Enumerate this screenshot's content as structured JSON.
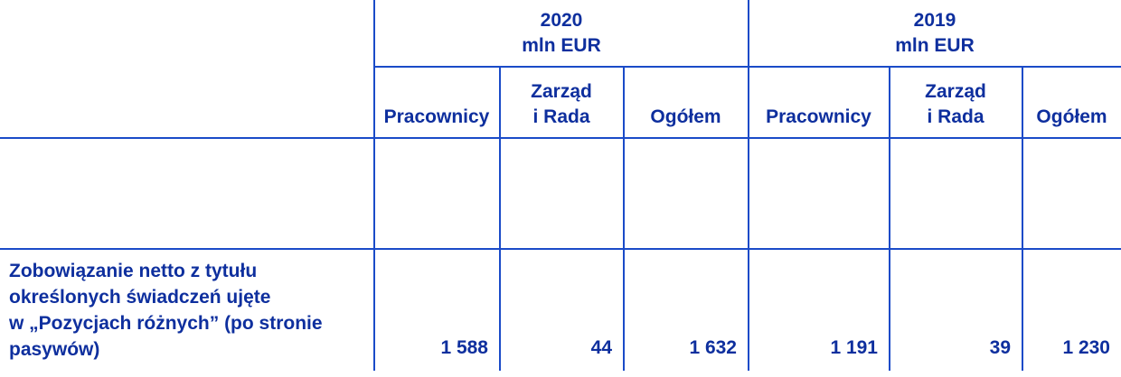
{
  "colors": {
    "text": "#0E2F9E",
    "line": "#1A4BC8",
    "background": "#FFFFFF"
  },
  "table": {
    "year_groups": [
      {
        "year": "2020",
        "unit": "mln EUR"
      },
      {
        "year": "2019",
        "unit": "mln EUR"
      }
    ],
    "column_headers": [
      "Pracownicy",
      "Zarząd\ni Rada",
      "Ogółem",
      "Pracownicy",
      "Zarząd\ni Rada",
      "Ogółem"
    ],
    "rows": [
      {
        "label": "Zobowiązanie netto z tytułu\nokreślonych świadczeń ujęte\nw „Pozycjach różnych” (po stronie\npasywów)",
        "values": [
          "1 588",
          "44",
          "1 632",
          "1 191",
          "39",
          "1 230"
        ]
      }
    ]
  }
}
